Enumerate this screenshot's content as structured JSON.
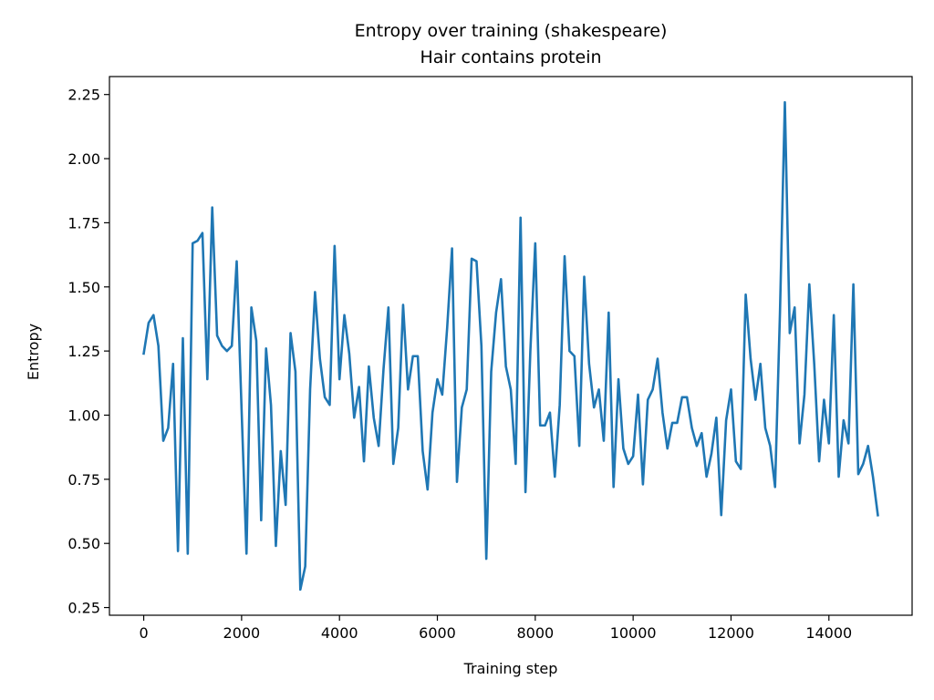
{
  "chart_data": {
    "type": "line",
    "title": "Entropy over training (shakespeare)",
    "subtitle": "Hair contains protein",
    "xlabel": "Training step",
    "ylabel": "Entropy",
    "xlim": [
      -700,
      15700
    ],
    "ylim": [
      0.22,
      2.32
    ],
    "xticks": [
      0,
      2000,
      4000,
      6000,
      8000,
      10000,
      12000,
      14000
    ],
    "xtick_labels": [
      "0",
      "2000",
      "4000",
      "6000",
      "8000",
      "10000",
      "12000",
      "14000"
    ],
    "yticks": [
      0.25,
      0.5,
      0.75,
      1.0,
      1.25,
      1.5,
      1.75,
      2.0,
      2.25
    ],
    "ytick_labels": [
      "0.25",
      "0.50",
      "0.75",
      "1.00",
      "1.25",
      "1.50",
      "1.75",
      "2.00",
      "2.25"
    ],
    "grid": false,
    "series_color": "#1f77b4",
    "series": [
      {
        "x": [
          0,
          100,
          200,
          300,
          400,
          500,
          600,
          700,
          800,
          900,
          1000,
          1100,
          1200,
          1300,
          1400,
          1500,
          1600,
          1700,
          1800,
          1900,
          2000,
          2100,
          2200,
          2300,
          2400,
          2500,
          2600,
          2700,
          2800,
          2900,
          3000,
          3100,
          3200,
          3300,
          3400,
          3500,
          3600,
          3700,
          3800,
          3900,
          4000,
          4100,
          4200,
          4300,
          4400,
          4500,
          4600,
          4700,
          4800,
          4900,
          5000,
          5100,
          5200,
          5300,
          5400,
          5500,
          5600,
          5700,
          5800,
          5900,
          6000,
          6100,
          6200,
          6300,
          6400,
          6500,
          6600,
          6700,
          6800,
          6900,
          7000,
          7100,
          7200,
          7300,
          7400,
          7500,
          7600,
          7700,
          7800,
          7900,
          8000,
          8100,
          8200,
          8300,
          8400,
          8500,
          8600,
          8700,
          8800,
          8900,
          9000,
          9100,
          9200,
          9300,
          9400,
          9500,
          9600,
          9700,
          9800,
          9900,
          10000,
          10100,
          10200,
          10300,
          10400,
          10500,
          10600,
          10700,
          10800,
          10900,
          11000,
          11100,
          11200,
          11300,
          11400,
          11500,
          11600,
          11700,
          11800,
          11900,
          12000,
          12100,
          12200,
          12300,
          12400,
          12500,
          12600,
          12700,
          12800,
          12900,
          13000,
          13100,
          13200,
          13300,
          13400,
          13500,
          13600,
          13700,
          13800,
          13900,
          14000,
          14100,
          14200,
          14300,
          14400,
          14500,
          14600,
          14700,
          14800,
          14900,
          15000
        ],
        "values": [
          1.24,
          1.36,
          1.39,
          1.27,
          0.9,
          0.95,
          1.2,
          0.47,
          1.3,
          0.46,
          1.67,
          1.68,
          1.71,
          1.14,
          1.81,
          1.31,
          1.27,
          1.25,
          1.27,
          1.6,
          1.02,
          0.46,
          1.42,
          1.29,
          0.59,
          1.26,
          1.04,
          0.49,
          0.86,
          0.65,
          1.32,
          1.17,
          0.32,
          0.41,
          1.1,
          1.48,
          1.22,
          1.07,
          1.04,
          1.66,
          1.14,
          1.39,
          1.24,
          0.99,
          1.11,
          0.82,
          1.19,
          0.99,
          0.88,
          1.18,
          1.42,
          0.81,
          0.95,
          1.43,
          1.1,
          1.23,
          1.23,
          0.86,
          0.71,
          1.01,
          1.14,
          1.08,
          1.34,
          1.65,
          0.74,
          1.03,
          1.1,
          1.61,
          1.6,
          1.27,
          0.44,
          1.17,
          1.4,
          1.53,
          1.19,
          1.1,
          0.81,
          1.77,
          0.7,
          1.25,
          1.67,
          0.96,
          0.96,
          1.01,
          0.76,
          1.04,
          1.62,
          1.25,
          1.23,
          0.88,
          1.54,
          1.2,
          1.03,
          1.1,
          0.9,
          1.4,
          0.72,
          1.14,
          0.87,
          0.81,
          0.84,
          1.08,
          0.73,
          1.06,
          1.1,
          1.22,
          1.01,
          0.87,
          0.97,
          0.97,
          1.07,
          1.07,
          0.95,
          0.88,
          0.93,
          0.76,
          0.85,
          0.99,
          0.61,
          0.98,
          1.1,
          0.82,
          0.79,
          1.47,
          1.22,
          1.06,
          1.2,
          0.95,
          0.88,
          0.72,
          1.4,
          2.22,
          1.32,
          1.42,
          0.89,
          1.08,
          1.51,
          1.2,
          0.82,
          1.06,
          0.89,
          1.39,
          0.76,
          0.98,
          0.89,
          1.51,
          0.77,
          0.81,
          0.88,
          0.76,
          0.61
        ]
      }
    ]
  }
}
